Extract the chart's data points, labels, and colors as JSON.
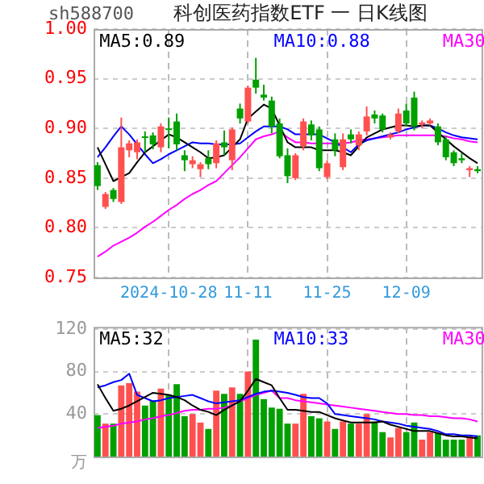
{
  "chart_data": [
    {
      "type": "candlestick",
      "title": "科创医药指数ETF 一 日K线图",
      "annotations": [
        "sh588700"
      ],
      "categories": [
        null,
        null,
        null,
        null,
        null,
        null,
        null,
        null,
        null,
        "2024-10-28",
        null,
        null,
        null,
        null,
        null,
        null,
        null,
        null,
        null,
        "11-11",
        null,
        null,
        null,
        null,
        null,
        null,
        null,
        null,
        null,
        "11-25",
        null,
        null,
        null,
        null,
        null,
        null,
        null,
        null,
        null,
        "12-09",
        null,
        null,
        null,
        null,
        null,
        null,
        null,
        null,
        null
      ],
      "ohlc": [
        [
          0.863,
          0.866,
          0.838,
          0.842
        ],
        [
          0.821,
          0.836,
          0.819,
          0.834
        ],
        [
          0.838,
          0.84,
          0.826,
          0.829
        ],
        [
          0.826,
          0.911,
          0.824,
          0.881
        ],
        [
          0.878,
          0.888,
          0.871,
          0.885
        ],
        [
          0.876,
          0.889,
          0.869,
          0.886
        ],
        [
          0.892,
          0.897,
          0.876,
          0.891
        ],
        [
          0.893,
          0.896,
          0.879,
          0.884
        ],
        [
          0.881,
          0.905,
          0.876,
          0.902
        ],
        [
          0.9,
          0.911,
          0.88,
          0.899
        ],
        [
          0.907,
          0.915,
          0.878,
          0.884
        ],
        [
          0.873,
          0.878,
          0.857,
          0.868
        ],
        [
          0.864,
          0.872,
          0.86,
          0.868
        ],
        [
          0.859,
          0.866,
          0.851,
          0.864
        ],
        [
          0.87,
          0.878,
          0.859,
          0.864
        ],
        [
          0.865,
          0.888,
          0.86,
          0.885
        ],
        [
          0.886,
          0.898,
          0.873,
          0.881
        ],
        [
          0.868,
          0.901,
          0.858,
          0.899
        ],
        [
          0.92,
          0.925,
          0.905,
          0.91
        ],
        [
          0.907,
          0.943,
          0.905,
          0.941
        ],
        [
          0.949,
          0.971,
          0.935,
          0.941
        ],
        [
          0.934,
          0.944,
          0.928,
          0.931
        ],
        [
          0.928,
          0.932,
          0.895,
          0.902
        ],
        [
          0.905,
          0.91,
          0.87,
          0.872
        ],
        [
          0.873,
          0.88,
          0.845,
          0.852
        ],
        [
          0.85,
          0.875,
          0.848,
          0.873
        ],
        [
          0.882,
          0.91,
          0.878,
          0.907
        ],
        [
          0.904,
          0.908,
          0.888,
          0.893
        ],
        [
          0.899,
          0.902,
          0.857,
          0.86
        ],
        [
          0.851,
          0.868,
          0.849,
          0.865
        ],
        [
          0.889,
          0.895,
          0.872,
          0.878
        ],
        [
          0.861,
          0.895,
          0.858,
          0.889
        ],
        [
          0.894,
          0.899,
          0.885,
          0.889
        ],
        [
          0.883,
          0.897,
          0.878,
          0.894
        ],
        [
          0.897,
          0.922,
          0.893,
          0.912
        ],
        [
          0.914,
          0.918,
          0.905,
          0.91
        ],
        [
          0.913,
          0.915,
          0.896,
          0.899
        ],
        [
          0.891,
          0.896,
          0.889,
          0.894
        ],
        [
          0.897,
          0.92,
          0.895,
          0.915
        ],
        [
          0.918,
          0.925,
          0.902,
          0.905
        ],
        [
          0.931,
          0.937,
          0.898,
          0.902
        ],
        [
          0.904,
          0.908,
          0.9,
          0.906
        ],
        [
          0.905,
          0.91,
          0.903,
          0.908
        ],
        [
          0.902,
          0.905,
          0.883,
          0.886
        ],
        [
          0.889,
          0.892,
          0.868,
          0.871
        ],
        [
          0.876,
          0.878,
          0.862,
          0.865
        ],
        [
          0.87,
          0.875,
          0.865,
          0.868
        ],
        [
          0.858,
          0.862,
          0.851,
          0.86
        ],
        [
          0.859,
          0.862,
          0.855,
          0.857
        ]
      ],
      "colors": [
        "#00a000",
        "#ff5050",
        "#00a000",
        "#ff5050",
        "#ff5050",
        "#ff5050",
        "#00a000",
        "#00a000",
        "#ff5050",
        "#00a000",
        "#00a000",
        "#00a000",
        "#ff5050",
        "#ff5050",
        "#00a000",
        "#ff5050",
        "#00a000",
        "#ff5050",
        "#00a000",
        "#ff5050",
        "#00a000",
        "#00a000",
        "#00a000",
        "#00a000",
        "#00a000",
        "#ff5050",
        "#ff5050",
        "#00a000",
        "#00a000",
        "#ff5050",
        "#00a000",
        "#ff5050",
        "#00a000",
        "#ff5050",
        "#ff5050",
        "#00a000",
        "#00a000",
        "#ff5050",
        "#ff5050",
        "#00a000",
        "#00a000",
        "#ff5050",
        "#ff5050",
        "#00a000",
        "#00a000",
        "#00a000",
        "#00a000",
        "#ff5050",
        "#00a000"
      ],
      "ylim": [
        0.75,
        1.0
      ],
      "yticks": [
        {
          "value": 0.75,
          "label": "0.75"
        },
        {
          "value": 0.8,
          "label": "0.80"
        },
        {
          "value": 0.85,
          "label": "0.85"
        },
        {
          "value": 0.9,
          "label": "0.90"
        },
        {
          "value": 0.95,
          "label": "0.95"
        },
        {
          "value": 1.0,
          "label": "1.00"
        }
      ],
      "grid": true,
      "legend": "top",
      "series": [
        {
          "type": "line",
          "name": "MA5:0.89",
          "color": "#000000",
          "values": [
            0.881,
            0.864,
            0.847,
            0.851,
            0.855,
            0.866,
            0.876,
            0.882,
            0.888,
            0.894,
            0.891,
            0.886,
            0.881,
            0.876,
            0.87,
            0.871,
            0.873,
            0.881,
            0.889,
            0.91,
            0.917,
            0.924,
            0.92,
            0.903,
            0.886,
            0.881,
            0.881,
            0.881,
            0.878,
            0.878,
            0.878,
            0.876,
            0.873,
            0.882,
            0.891,
            0.895,
            0.899,
            0.901,
            0.903,
            0.903,
            0.902,
            0.903,
            0.903,
            0.896,
            0.889,
            0.882,
            0.876,
            0.87,
            0.865
          ]
        },
        {
          "type": "line",
          "name": "MA10:0.88",
          "color": "#0000ff",
          "values": [
            0.871,
            0.881,
            0.892,
            0.902,
            0.894,
            0.884,
            0.874,
            0.865,
            0.869,
            0.874,
            0.878,
            0.882,
            0.886,
            0.885,
            0.885,
            0.884,
            0.884,
            0.884,
            0.885,
            0.891,
            0.897,
            0.902,
            0.902,
            0.902,
            0.899,
            0.894,
            0.894,
            0.894,
            0.894,
            0.89,
            0.886,
            0.881,
            0.876,
            0.884,
            0.888,
            0.89,
            0.892,
            0.894,
            0.896,
            0.899,
            0.901,
            0.903,
            0.903,
            0.9,
            0.896,
            0.893,
            0.891,
            0.89,
            0.889
          ]
        },
        {
          "type": "line",
          "name": "MA30",
          "color": "#ff00ff",
          "values": [
            0.771,
            0.776,
            0.782,
            0.786,
            0.79,
            0.795,
            0.801,
            0.806,
            0.812,
            0.818,
            0.823,
            0.829,
            0.834,
            0.838,
            0.843,
            0.847,
            0.855,
            0.863,
            0.871,
            0.88,
            0.889,
            0.892,
            0.894,
            0.897,
            0.891,
            0.886,
            0.886,
            0.885,
            0.885,
            0.885,
            0.885,
            0.885,
            0.886,
            0.888,
            0.889,
            0.89,
            0.891,
            0.892,
            0.893,
            0.893,
            0.893,
            0.893,
            0.893,
            0.893,
            0.892,
            0.89,
            0.889,
            0.887,
            0.886
          ]
        }
      ]
    },
    {
      "type": "bar",
      "ylabel": "万",
      "tick_labels": "y",
      "categories": [
        null,
        null,
        null,
        null,
        null,
        null,
        null,
        null,
        null,
        null,
        null,
        null,
        null,
        null,
        null,
        null,
        null,
        null,
        null,
        null,
        null,
        null,
        null,
        null,
        null,
        null,
        null,
        null,
        null,
        null,
        null,
        null,
        null,
        null,
        null,
        null,
        null,
        null,
        null,
        null,
        null,
        null,
        null,
        null,
        null,
        null,
        null,
        null,
        null
      ],
      "ylim": [
        0,
        122
      ],
      "yticks": [
        40,
        80,
        120
      ],
      "grid": true,
      "legend": "top",
      "series": [
        {
          "type": "bar",
          "values": [
            39,
            31,
            31,
            67,
            69,
            61,
            48,
            53,
            64,
            58,
            68,
            38,
            40,
            32,
            26,
            62,
            59,
            65,
            59,
            80,
            110,
            54,
            46,
            45,
            31,
            31,
            59,
            38,
            36,
            33,
            26,
            33,
            31,
            31,
            40,
            33,
            23,
            18,
            27,
            23,
            32,
            16,
            23,
            22,
            16,
            16,
            16,
            19,
            20
          ],
          "colors": [
            "#00a000",
            "#ff5050",
            "#00a000",
            "#ff5050",
            "#ff5050",
            "#ff5050",
            "#00a000",
            "#00a000",
            "#ff5050",
            "#00a000",
            "#00a000",
            "#00a000",
            "#ff5050",
            "#ff5050",
            "#00a000",
            "#ff5050",
            "#00a000",
            "#ff5050",
            "#00a000",
            "#ff5050",
            "#00a000",
            "#00a000",
            "#00a000",
            "#00a000",
            "#00a000",
            "#ff5050",
            "#ff5050",
            "#00a000",
            "#00a000",
            "#ff5050",
            "#00a000",
            "#ff5050",
            "#00a000",
            "#ff5050",
            "#ff5050",
            "#00a000",
            "#00a000",
            "#ff5050",
            "#ff5050",
            "#00a000",
            "#00a000",
            "#ff5050",
            "#ff5050",
            "#00a000",
            "#00a000",
            "#00a000",
            "#00a000",
            "#ff5050",
            "#00a000"
          ]
        },
        {
          "type": "line",
          "name": "MA5:32",
          "color": "#000000",
          "values": [
            68,
            55,
            43,
            45,
            48,
            52,
            56,
            60,
            59,
            58,
            56,
            53,
            48,
            44,
            42,
            39,
            44,
            48,
            52,
            62,
            73,
            70,
            67,
            55,
            44,
            44,
            43,
            42,
            42,
            39,
            36,
            34,
            32,
            32,
            32,
            32,
            33,
            30,
            28,
            26,
            24,
            24,
            24,
            22,
            20,
            19,
            19,
            18,
            17
          ]
        },
        {
          "type": "line",
          "name": "MA10:33",
          "color": "#0000ff",
          "values": [
            65,
            67,
            70,
            72,
            78,
            58,
            55,
            52,
            53,
            55,
            56,
            57,
            58,
            55,
            52,
            50,
            51,
            52,
            53,
            56,
            59,
            61,
            62,
            61,
            60,
            58,
            56,
            55,
            55,
            50,
            40,
            39,
            38,
            37,
            36,
            35,
            33,
            32,
            31,
            29,
            28,
            27,
            26,
            24,
            21,
            21,
            20,
            20,
            19
          ]
        },
        {
          "type": "line",
          "name": "MA30",
          "color": "#ff00ff",
          "values": [
            27,
            28,
            29,
            31,
            32,
            33,
            35,
            36,
            38,
            39,
            41,
            43,
            44,
            44,
            45,
            45,
            46,
            48,
            52,
            55,
            58,
            60,
            62,
            55,
            55,
            53,
            52,
            51,
            50,
            49,
            48,
            47,
            46,
            45,
            44,
            43,
            42,
            41,
            40,
            40,
            39,
            39,
            38,
            38,
            37,
            36,
            36,
            35,
            33
          ]
        }
      ]
    }
  ]
}
